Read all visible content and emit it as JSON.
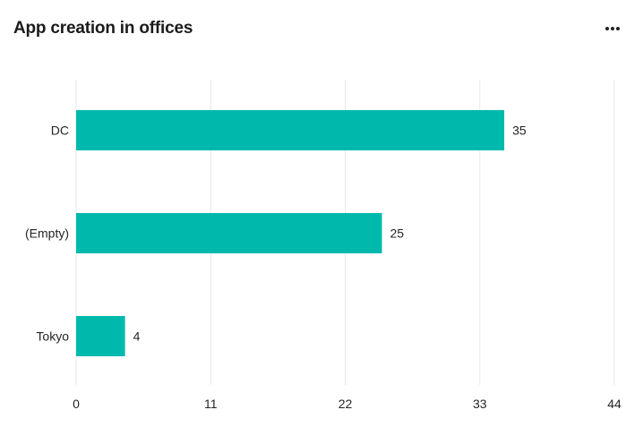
{
  "header": {
    "title": "App creation in offices",
    "more_icon": "more-horizontal-icon"
  },
  "chart_data": {
    "type": "bar",
    "orientation": "horizontal",
    "title": "App creation in offices",
    "categories": [
      "DC",
      "(Empty)",
      "Tokyo"
    ],
    "values": [
      35,
      25,
      4
    ],
    "xlim": [
      0,
      44
    ],
    "xticks": [
      0,
      11,
      22,
      33,
      44
    ],
    "grid": true,
    "data_labels": true,
    "bar_color": "#00B9AD",
    "grid_color": "#E8E8E8"
  }
}
